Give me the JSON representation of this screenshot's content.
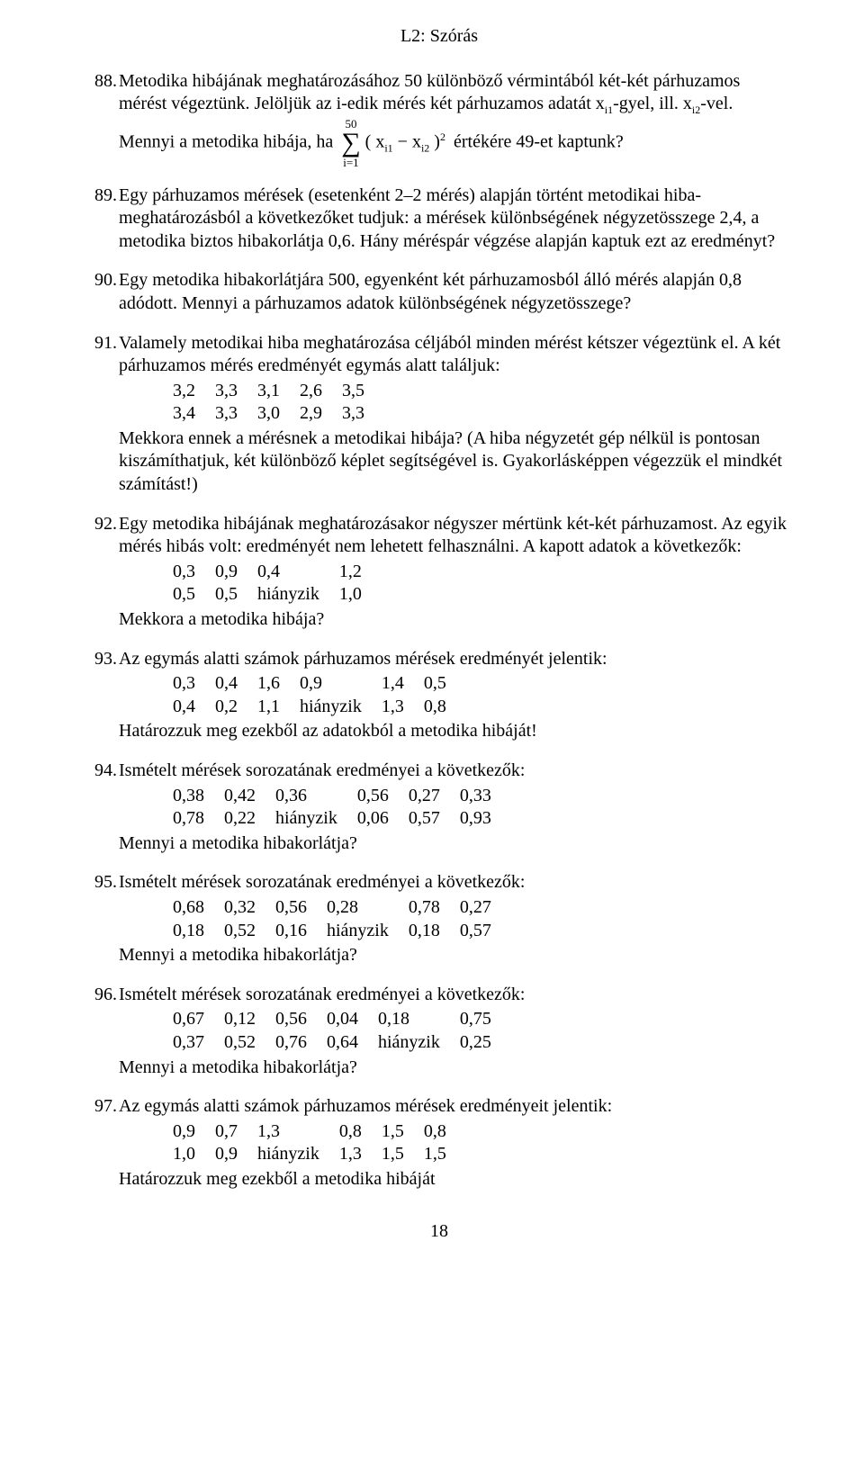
{
  "title": "L2: Szórás",
  "pageNumber": "18",
  "q88": {
    "num": "88.",
    "p1a": "Metodika hibájának meghatározásához 50 különböző vérmintából két-két párhuzamos mérést végeztünk. Jelöljük az i-edik mérés két párhuzamos adatát x",
    "sub1": "i1",
    "p1b": "-gyel, ill. x",
    "sub2": "i2",
    "p1c": "-vel.",
    "p2a": "Mennyi a metodika hibája, ha ",
    "sigma_top": "50",
    "sigma_bot": "i=1",
    "expr_a": "( x",
    "expr_sub1": "i1",
    "expr_mid": " − x",
    "expr_sub2": "i2",
    "expr_b": " )",
    "expr_sup": "2",
    "p2b": " értékére 49-et kaptunk?"
  },
  "q89": {
    "num": "89.",
    "text": "Egy párhuzamos mérések (esetenként 2–2 mérés) alapján történt metodikai hiba-meghatározásból a következőket tudjuk: a mérések különbségének négyzetösszege 2,4, a metodika biztos hibakorlátja 0,6. Hány méréspár végzése alapján kaptuk ezt az eredményt?"
  },
  "q90": {
    "num": "90.",
    "text": "Egy metodika hibakorlátjára 500, egyenként két párhuzamosból álló mérés alapján 0,8 adódott. Mennyi a párhuzamos adatok különbségének négyzetösszege?"
  },
  "q91": {
    "num": "91.",
    "p1": "Valamely metodikai hiba meghatározása céljából minden mérést kétszer végeztünk el. A két párhuzamos mérés eredményét egymás alatt találjuk:",
    "row1": [
      "3,2",
      "3,3",
      "3,1",
      "2,6",
      "3,5"
    ],
    "row2": [
      "3,4",
      "3,3",
      "3,0",
      "2,9",
      "3,3"
    ],
    "p2": "Mekkora ennek a mérésnek a metodikai hibája? (A hiba négyzetét gép nélkül is pontosan kiszámíthatjuk, két különböző képlet segítségével is. Gyakorlásképpen végezzük el mindkét számítást!)"
  },
  "q92": {
    "num": "92.",
    "p1": "Egy metodika hibájának meghatározásakor négyszer mértünk két-két párhuzamost. Az egyik mérés hibás volt: eredményét nem lehetett felhasználni. A kapott adatok a következők:",
    "row1": [
      "0,3",
      "0,9",
      "0,4",
      "1,2"
    ],
    "row2": [
      "0,5",
      "0,5",
      "hiányzik",
      "1,0"
    ],
    "p2": "Mekkora a metodika hibája?"
  },
  "q93": {
    "num": "93.",
    "p1": "Az egymás alatti számok párhuzamos mérések eredményét jelentik:",
    "row1": [
      "0,3",
      "0,4",
      "1,6",
      "0,9",
      "1,4",
      "0,5"
    ],
    "row2": [
      "0,4",
      "0,2",
      "1,1",
      "hiányzik",
      "1,3",
      "0,8"
    ],
    "p2": "Határozzuk meg ezekből az adatokból a metodika hibáját!"
  },
  "q94": {
    "num": "94.",
    "p1": "Ismételt mérések sorozatának eredményei a következők:",
    "row1": [
      "0,38",
      "0,42",
      "0,36",
      "0,56",
      "0,27",
      "0,33"
    ],
    "row2": [
      "0,78",
      "0,22",
      "hiányzik",
      "0,06",
      "0,57",
      "0,93"
    ],
    "p2": "Mennyi a metodika hibakorlátja?"
  },
  "q95": {
    "num": "95.",
    "p1": "Ismételt mérések sorozatának eredményei a következők:",
    "row1": [
      "0,68",
      "0,32",
      "0,56",
      "0,28",
      "0,78",
      "0,27"
    ],
    "row2": [
      "0,18",
      "0,52",
      "0,16",
      "hiányzik",
      "0,18",
      "0,57"
    ],
    "p2": "Mennyi a metodika hibakorlátja?"
  },
  "q96": {
    "num": "96.",
    "p1": "Ismételt mérések sorozatának eredményei a következők:",
    "row1": [
      "0,67",
      "0,12",
      "0,56",
      "0,04",
      "0,18",
      "0,75"
    ],
    "row2": [
      "0,37",
      "0,52",
      "0,76",
      "0,64",
      "hiányzik",
      "0,25"
    ],
    "p2": "Mennyi a metodika hibakorlátja?"
  },
  "q97": {
    "num": "97.",
    "p1": "Az egymás alatti számok párhuzamos mérések eredményeit jelentik:",
    "row1": [
      "0,9",
      "0,7",
      "1,3",
      "0,8",
      "1,5",
      "0,8"
    ],
    "row2": [
      "1,0",
      "0,9",
      "hiányzik",
      "1,3",
      "1,5",
      "1,5"
    ],
    "p2": "Határozzuk meg ezekből a metodika hibáját"
  }
}
